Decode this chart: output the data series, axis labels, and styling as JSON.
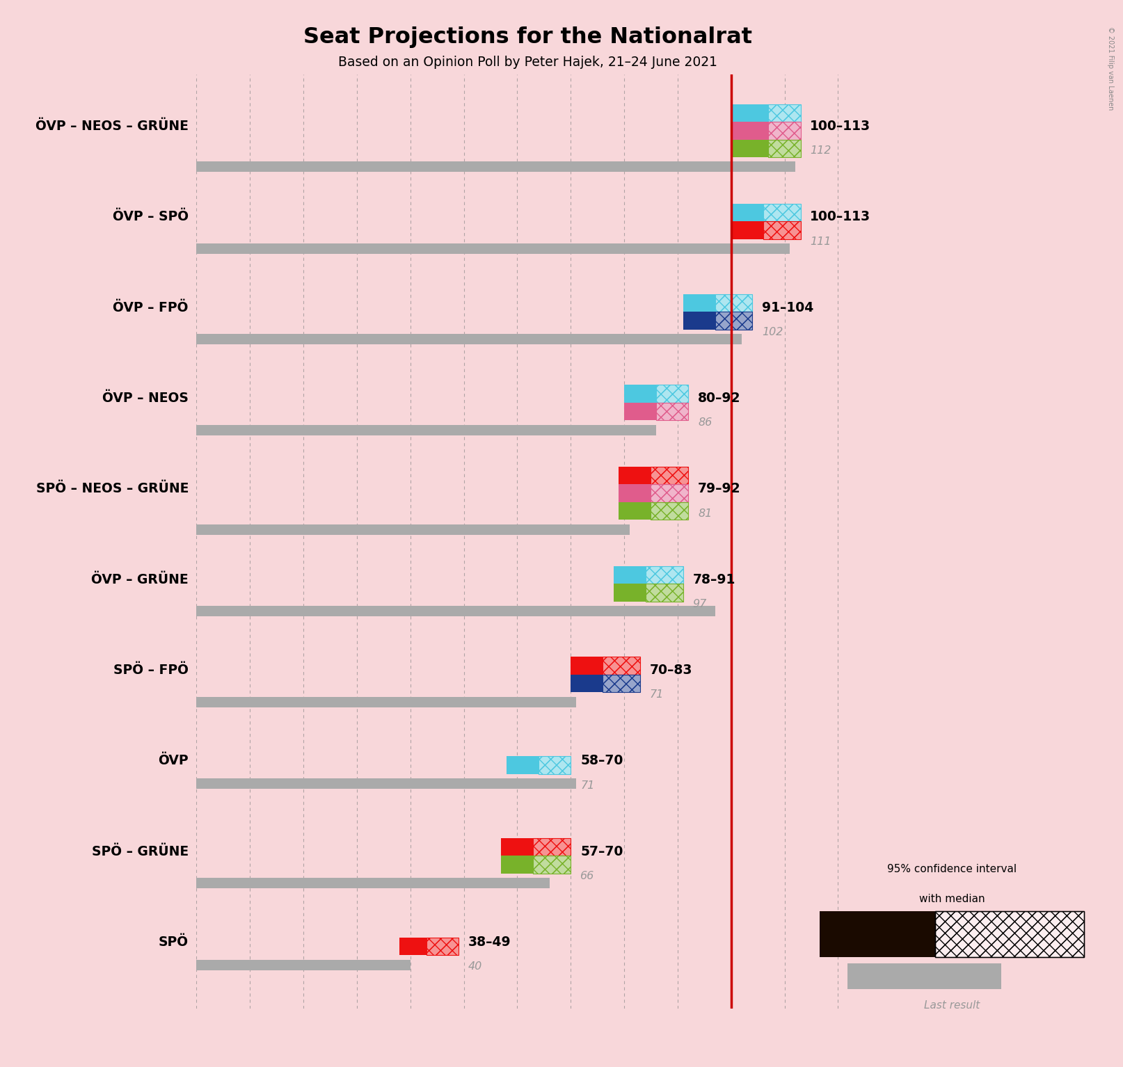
{
  "title": "Seat Projections for the Nationalrat",
  "subtitle": "Based on an Opinion Poll by Peter Hajek, 21–24 June 2021",
  "copyright": "© 2021 Filip van Laenen",
  "bg_color": "#f8d7da",
  "majority_line": 100,
  "x_max": 125,
  "coalitions": [
    {
      "name": "ÖVP – NEOS – GRÜNE",
      "underline": false,
      "ci_low": 100,
      "ci_high": 113,
      "median": 107,
      "last_result": 112,
      "label": "100–113",
      "label_last": "112",
      "colors": [
        "#4DC8E0",
        "#E05C8C",
        "#78B22A"
      ],
      "n_parties": 3
    },
    {
      "name": "ÖVP – SPÖ",
      "underline": false,
      "ci_low": 100,
      "ci_high": 113,
      "median": 106,
      "last_result": 111,
      "label": "100–113",
      "label_last": "111",
      "colors": [
        "#4DC8E0",
        "#EE1111"
      ],
      "n_parties": 2
    },
    {
      "name": "ÖVP – FPÖ",
      "underline": false,
      "ci_low": 91,
      "ci_high": 104,
      "median": 97,
      "last_result": 102,
      "label": "91–104",
      "label_last": "102",
      "colors": [
        "#4DC8E0",
        "#1A3A8C"
      ],
      "n_parties": 2
    },
    {
      "name": "ÖVP – NEOS",
      "underline": false,
      "ci_low": 80,
      "ci_high": 92,
      "median": 86,
      "last_result": 86,
      "label": "80–92",
      "label_last": "86",
      "colors": [
        "#4DC8E0",
        "#E05C8C"
      ],
      "n_parties": 2
    },
    {
      "name": "SPÖ – NEOS – GRÜNE",
      "underline": false,
      "ci_low": 79,
      "ci_high": 92,
      "median": 85,
      "last_result": 81,
      "label": "79–92",
      "label_last": "81",
      "colors": [
        "#EE1111",
        "#E05C8C",
        "#78B22A"
      ],
      "n_parties": 3
    },
    {
      "name": "ÖVP – GRÜNE",
      "underline": true,
      "ci_low": 78,
      "ci_high": 91,
      "median": 84,
      "last_result": 97,
      "label": "78–91",
      "label_last": "97",
      "colors": [
        "#4DC8E0",
        "#78B22A"
      ],
      "n_parties": 2
    },
    {
      "name": "SPÖ – FPÖ",
      "underline": false,
      "ci_low": 70,
      "ci_high": 83,
      "median": 76,
      "last_result": 71,
      "label": "70–83",
      "label_last": "71",
      "colors": [
        "#EE1111",
        "#1A3A8C"
      ],
      "n_parties": 2
    },
    {
      "name": "ÖVP",
      "underline": false,
      "ci_low": 58,
      "ci_high": 70,
      "median": 64,
      "last_result": 71,
      "label": "58–70",
      "label_last": "71",
      "colors": [
        "#4DC8E0"
      ],
      "n_parties": 1
    },
    {
      "name": "SPÖ – GRÜNE",
      "underline": false,
      "ci_low": 57,
      "ci_high": 70,
      "median": 63,
      "last_result": 66,
      "label": "57–70",
      "label_last": "66",
      "colors": [
        "#EE1111",
        "#78B22A"
      ],
      "n_parties": 2
    },
    {
      "name": "SPÖ",
      "underline": false,
      "ci_low": 38,
      "ci_high": 49,
      "median": 43,
      "last_result": 40,
      "label": "38–49",
      "label_last": "40",
      "colors": [
        "#EE1111"
      ],
      "n_parties": 1
    }
  ]
}
